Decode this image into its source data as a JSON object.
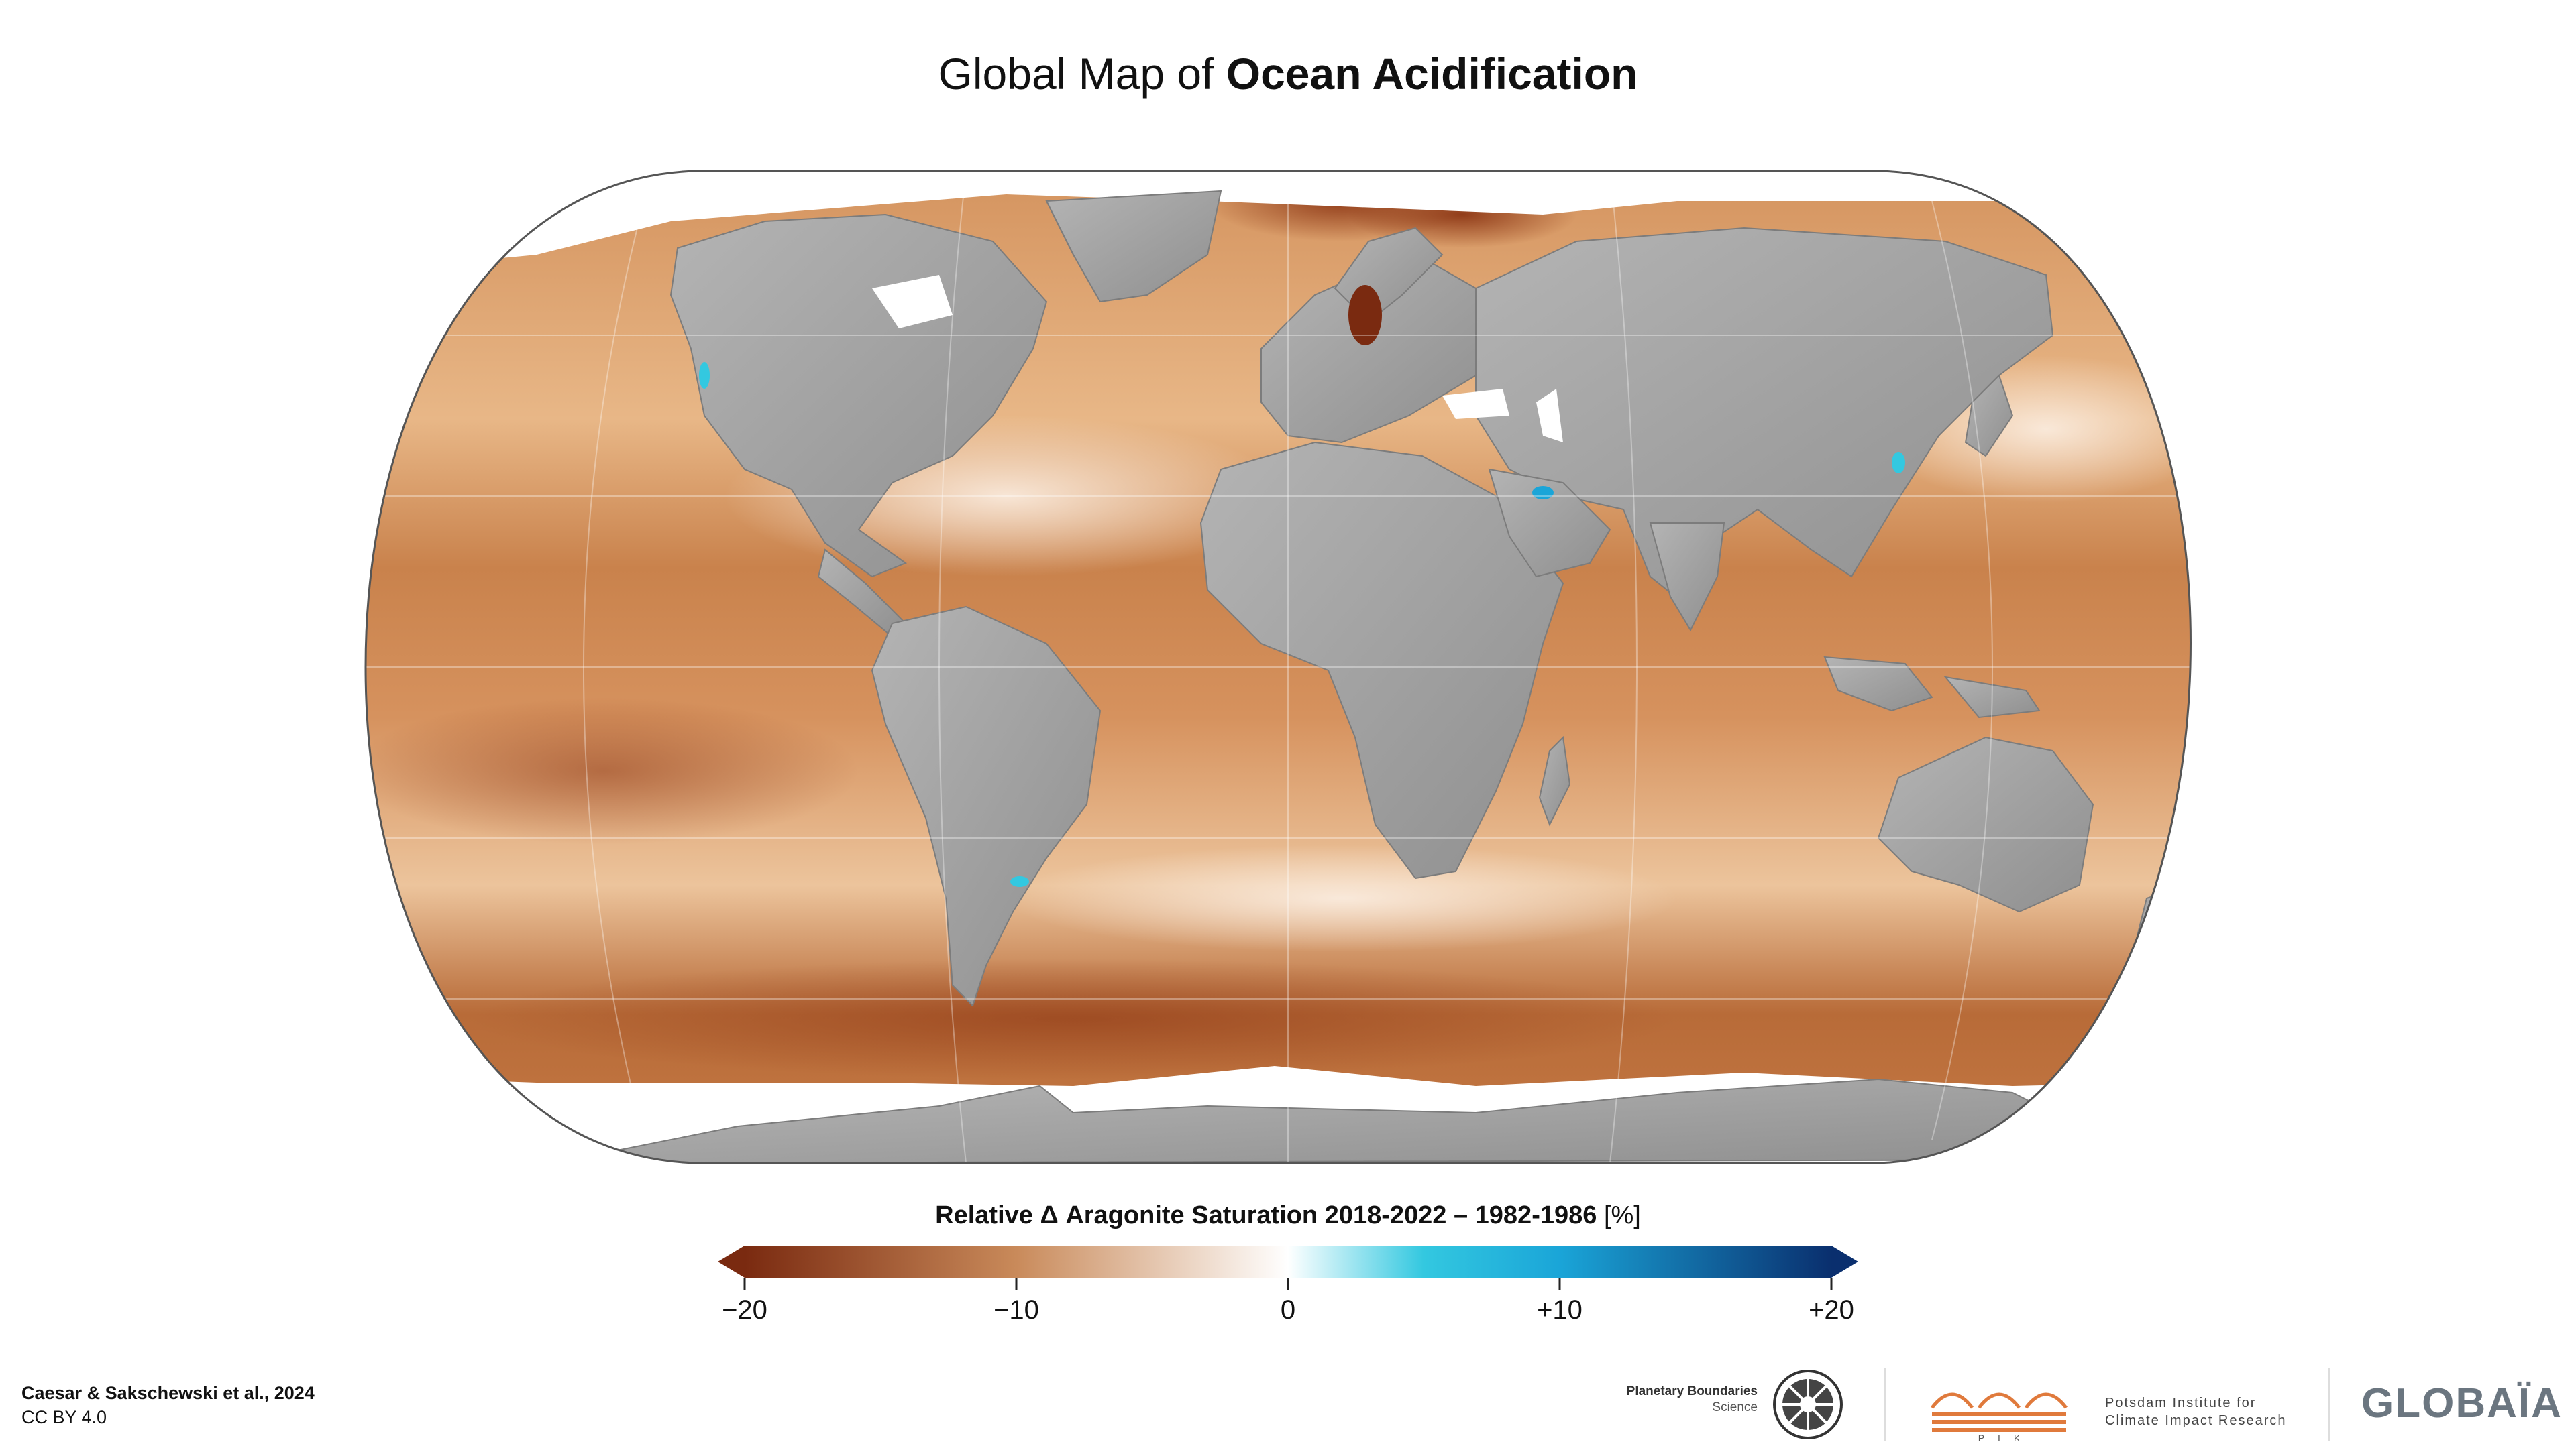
{
  "title": {
    "regular": "Global Map of",
    "bold": "Ocean Acidification"
  },
  "map": {
    "projection": "equal-earth",
    "land_color": "#9e9e9e",
    "ocean_colormap": "diverging brown-white-blue",
    "no_data_color": "#ffffff"
  },
  "colorbar": {
    "title": "Relative Δ Aragonite Saturation 2018-2022 – 1982-1986",
    "unit": "[%]",
    "range": [
      -20,
      20
    ],
    "extend": "both",
    "stops": [
      {
        "value": -20,
        "color": "#7a2a10"
      },
      {
        "value": -10,
        "color": "#c98a5a"
      },
      {
        "value": 0,
        "color": "#ffffff"
      },
      {
        "value": 5,
        "color": "#33c8e0"
      },
      {
        "value": 10,
        "color": "#1aa5d8"
      },
      {
        "value": 20,
        "color": "#0a2f6e"
      }
    ],
    "ticks": [
      {
        "value": -20,
        "label": "−20"
      },
      {
        "value": -10,
        "label": "−10"
      },
      {
        "value": 0,
        "label": "0"
      },
      {
        "value": 10,
        "label": "+10"
      },
      {
        "value": 20,
        "label": "+20"
      }
    ]
  },
  "credit": {
    "citation": "Caesar & Sakschewski et al., 2024",
    "license": "CC BY 4.0"
  },
  "logos": {
    "pbs": {
      "line1": "Planetary Boundaries",
      "line2": "Science"
    },
    "pik": {
      "line1": "Potsdam Institute for",
      "line2": "Climate Impact Research",
      "abbr": "PIK"
    },
    "globaia": "GLOBAÏA"
  }
}
